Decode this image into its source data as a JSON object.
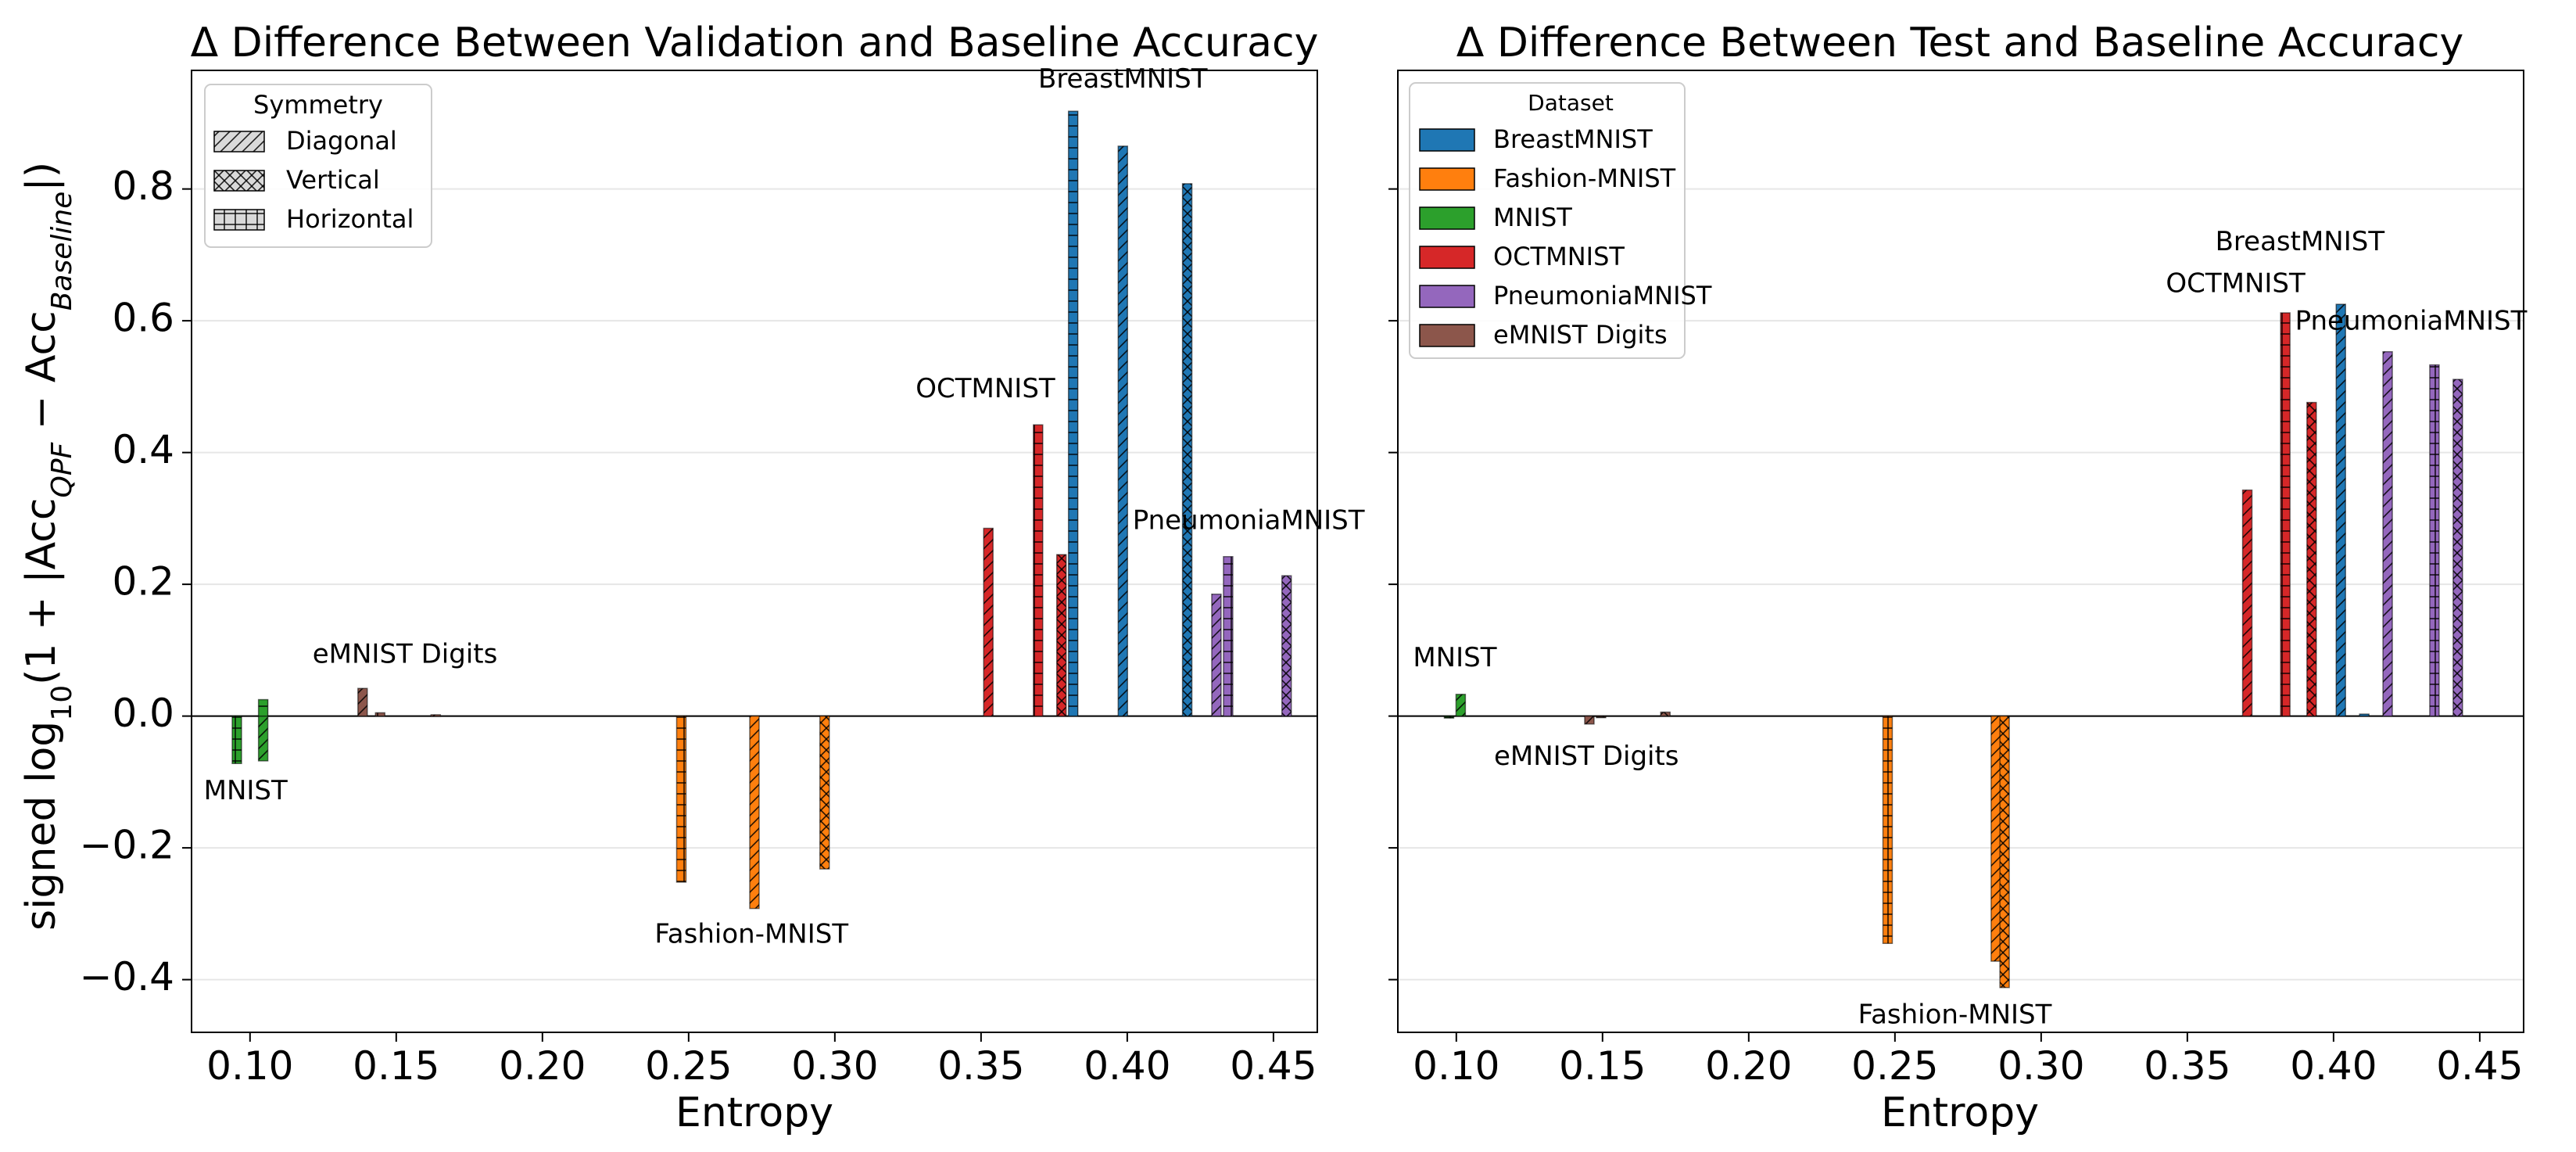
{
  "figure": {
    "ylabel_base": "signed log",
    "ylabel_rest": "(1 + |Acc",
    "ylabel_sub1": "QPF",
    "ylabel_mid": " − Acc",
    "ylabel_sub2": "Baseline",
    "ylabel_end": "|)",
    "ylabel_log_sub": "10"
  },
  "symmetry_legend": {
    "title": "Symmetry",
    "items": [
      {
        "label": "Diagonal",
        "hatch": "diag"
      },
      {
        "label": "Vertical",
        "hatch": "cross"
      },
      {
        "label": "Horizontal",
        "hatch": "grid"
      }
    ]
  },
  "dataset_legend": {
    "title": "Dataset",
    "items": [
      {
        "label": "BreastMNIST",
        "color": "#1f77b4"
      },
      {
        "label": "Fashion-MNIST",
        "color": "#ff7f0e"
      },
      {
        "label": "MNIST",
        "color": "#2ca02c"
      },
      {
        "label": "OCTMNIST",
        "color": "#d62728"
      },
      {
        "label": "PneumoniaMNIST",
        "color": "#9467bd"
      },
      {
        "label": "eMNIST Digits",
        "color": "#8c564b"
      }
    ]
  },
  "chart_data": [
    {
      "type": "bar",
      "title": "Δ Difference Between Validation and Baseline Accuracy",
      "xlabel": "Entropy",
      "ylabel": "signed log10(1 + |Acc_QPF − Acc_Baseline|)",
      "xlim": [
        0.08,
        0.465
      ],
      "ylim": [
        -0.48,
        0.98
      ],
      "xticks": [
        "0.10",
        "0.15",
        "0.20",
        "0.25",
        "0.30",
        "0.35",
        "0.40",
        "0.45"
      ],
      "yticks": [
        "−0.4",
        "−0.2",
        "0.0",
        "0.2",
        "0.4",
        "0.6",
        "0.8"
      ],
      "ygrid": true,
      "series": [
        {
          "dataset": "MNIST",
          "color": "#2ca02c",
          "bars": [
            {
              "x": 0.0955,
              "y": -0.072,
              "hatch": "grid"
            },
            {
              "x": 0.1045,
              "y": -0.068,
              "hatch": "diag"
            },
            {
              "x": 0.1045,
              "y": 0.025,
              "hatch": "grid"
            }
          ]
        },
        {
          "dataset": "eMNIST Digits",
          "color": "#8c564b",
          "bars": [
            {
              "x": 0.1385,
              "y": 0.042,
              "hatch": "diag"
            },
            {
              "x": 0.1445,
              "y": 0.005,
              "hatch": "grid"
            },
            {
              "x": 0.1635,
              "y": 0.002,
              "hatch": "diag"
            }
          ]
        },
        {
          "dataset": "Fashion-MNIST",
          "color": "#ff7f0e",
          "bars": [
            {
              "x": 0.2475,
              "y": -0.252,
              "hatch": "grid"
            },
            {
              "x": 0.2725,
              "y": -0.292,
              "hatch": "diag"
            },
            {
              "x": 0.2965,
              "y": -0.232,
              "hatch": "cross"
            }
          ]
        },
        {
          "dataset": "OCTMNIST",
          "color": "#d62728",
          "bars": [
            {
              "x": 0.3525,
              "y": 0.285,
              "hatch": "diag"
            },
            {
              "x": 0.3695,
              "y": 0.442,
              "hatch": "grid"
            },
            {
              "x": 0.3775,
              "y": 0.245,
              "hatch": "cross"
            }
          ]
        },
        {
          "dataset": "BreastMNIST",
          "color": "#1f77b4",
          "bars": [
            {
              "x": 0.3815,
              "y": 0.918,
              "hatch": "grid"
            },
            {
              "x": 0.3985,
              "y": 0.865,
              "hatch": "diag"
            },
            {
              "x": 0.4205,
              "y": 0.808,
              "hatch": "cross"
            }
          ]
        },
        {
          "dataset": "PneumoniaMNIST",
          "color": "#9467bd",
          "bars": [
            {
              "x": 0.4305,
              "y": 0.185,
              "hatch": "diag"
            },
            {
              "x": 0.4345,
              "y": 0.242,
              "hatch": "grid"
            },
            {
              "x": 0.4545,
              "y": 0.213,
              "hatch": "cross"
            }
          ]
        }
      ],
      "annotations": [
        {
          "text": "MNIST",
          "x": 0.0985,
          "y": -0.115
        },
        {
          "text": "eMNIST Digits",
          "x": 0.153,
          "y": 0.092
        },
        {
          "text": "Fashion-MNIST",
          "x": 0.2715,
          "y": -0.333
        },
        {
          "text": "OCTMNIST",
          "x": 0.3515,
          "y": 0.495
        },
        {
          "text": "BreastMNIST",
          "x": 0.3985,
          "y": 0.965
        },
        {
          "text": "PneumoniaMNIST",
          "x": 0.4415,
          "y": 0.295
        }
      ]
    },
    {
      "type": "bar",
      "title": "Δ Difference Between Test and Baseline Accuracy",
      "xlabel": "Entropy",
      "ylabel": "",
      "xlim": [
        0.08,
        0.465
      ],
      "ylim": [
        -0.48,
        0.98
      ],
      "xticks": [
        "0.10",
        "0.15",
        "0.20",
        "0.25",
        "0.30",
        "0.35",
        "0.40",
        "0.45"
      ],
      "yticks": [],
      "ygrid": true,
      "series": [
        {
          "dataset": "MNIST",
          "color": "#2ca02c",
          "bars": [
            {
              "x": 0.0975,
              "y": -0.003,
              "hatch": "grid"
            },
            {
              "x": 0.1015,
              "y": 0.033,
              "hatch": "diag"
            }
          ]
        },
        {
          "dataset": "eMNIST Digits",
          "color": "#8c564b",
          "bars": [
            {
              "x": 0.1455,
              "y": -0.012,
              "hatch": "diag"
            },
            {
              "x": 0.1495,
              "y": -0.002,
              "hatch": "grid"
            },
            {
              "x": 0.1715,
              "y": 0.006,
              "hatch": "cross"
            }
          ]
        },
        {
          "dataset": "Fashion-MNIST",
          "color": "#ff7f0e",
          "bars": [
            {
              "x": 0.2475,
              "y": -0.345,
              "hatch": "grid"
            },
            {
              "x": 0.2845,
              "y": -0.372,
              "hatch": "diag"
            },
            {
              "x": 0.2875,
              "y": -0.412,
              "hatch": "cross"
            }
          ]
        },
        {
          "dataset": "OCTMNIST",
          "color": "#d62728",
          "bars": [
            {
              "x": 0.3705,
              "y": 0.343,
              "hatch": "diag"
            },
            {
              "x": 0.3835,
              "y": 0.612,
              "hatch": "grid"
            },
            {
              "x": 0.3925,
              "y": 0.476,
              "hatch": "cross"
            }
          ]
        },
        {
          "dataset": "BreastMNIST",
          "color": "#1f77b4",
          "bars": [
            {
              "x": 0.4025,
              "y": 0.625,
              "hatch": "diag"
            },
            {
              "x": 0.4105,
              "y": 0.003,
              "hatch": "grid"
            }
          ]
        },
        {
          "dataset": "PneumoniaMNIST",
          "color": "#9467bd",
          "bars": [
            {
              "x": 0.4185,
              "y": 0.553,
              "hatch": "diag"
            },
            {
              "x": 0.4345,
              "y": 0.533,
              "hatch": "grid"
            },
            {
              "x": 0.4425,
              "y": 0.511,
              "hatch": "cross"
            }
          ]
        }
      ],
      "annotations": [
        {
          "text": "MNIST",
          "x": 0.0995,
          "y": 0.087
        },
        {
          "text": "eMNIST Digits",
          "x": 0.1445,
          "y": -0.063
        },
        {
          "text": "Fashion-MNIST",
          "x": 0.2705,
          "y": -0.455
        },
        {
          "text": "OCTMNIST",
          "x": 0.3665,
          "y": 0.655
        },
        {
          "text": "BreastMNIST",
          "x": 0.3885,
          "y": 0.718
        },
        {
          "text": "PneumoniaMNIST",
          "x": 0.4265,
          "y": 0.598
        }
      ]
    }
  ]
}
